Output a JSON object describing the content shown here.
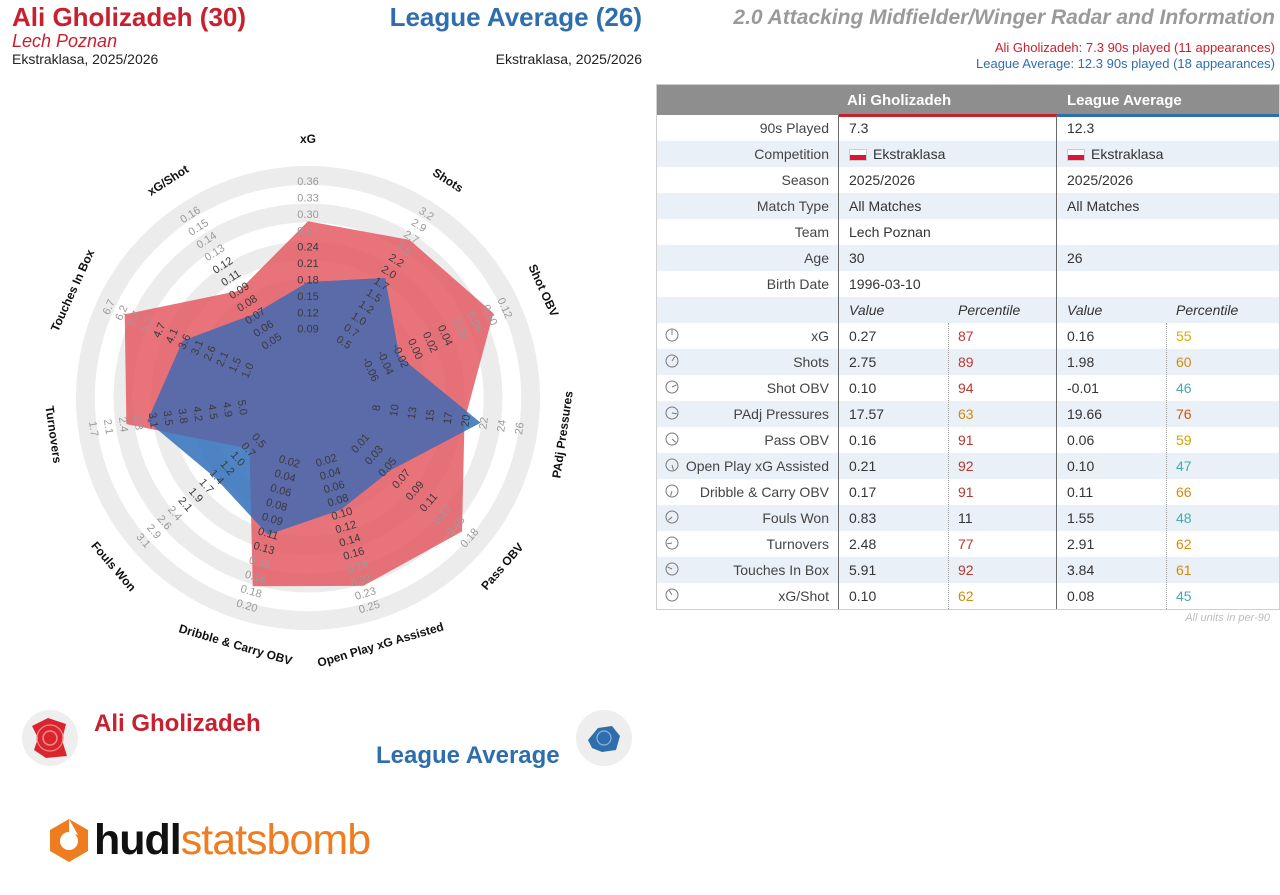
{
  "header": {
    "player_name": "Ali Gholizadeh (30)",
    "player_team": "Lech Poznan",
    "player_competition": "Ekstraklasa, 2025/2026",
    "comparison_name": "League Average (26)",
    "comparison_competition": "Ekstraklasa, 2025/2026",
    "title": "2.0 Attacking Midfielder/Winger Radar and Information",
    "subtitle_player": "Ali Gholizadeh: 7.3 90s played (11 appearances)",
    "subtitle_comparison": "League Average: 12.3 90s played (18 appearances)"
  },
  "colors": {
    "player": "#c8202f",
    "comparison": "#2f6ead",
    "player_fill": "#e55a64",
    "comparison_fill": "#3c78be",
    "overlap": "#5b6aa8",
    "brand_orange": "#ee7d22"
  },
  "chart_data": {
    "type": "radar",
    "series": [
      {
        "name": "Ali Gholizadeh",
        "values": [
          0.27,
          2.75,
          0.1,
          17.57,
          0.16,
          0.21,
          0.17,
          0.83,
          2.48,
          5.91,
          0.1
        ]
      },
      {
        "name": "League Average",
        "values": [
          0.16,
          1.98,
          -0.01,
          19.66,
          0.06,
          0.1,
          0.11,
          1.55,
          2.91,
          3.84,
          0.08
        ]
      }
    ],
    "axes": [
      {
        "label": "xG",
        "min": 0.03,
        "max": 0.37,
        "ticks": [
          "0.09",
          "0.12",
          "0.15",
          "0.18",
          "0.21",
          "0.24",
          "0.27",
          "0.30",
          "0.33",
          "0.36"
        ],
        "reversed": false
      },
      {
        "label": "Shots",
        "min": 0.3,
        "max": 3.5,
        "ticks": [
          "0.5",
          "0.7",
          "1.0",
          "1.2",
          "1.5",
          "1.7",
          "2.0",
          "2.2",
          "2.5",
          "2.7",
          "2.9",
          "3.2"
        ],
        "reversed": false
      },
      {
        "label": "Shot OBV",
        "min": -0.07,
        "max": 0.13,
        "ticks": [
          "-0.06",
          "-0.04",
          "-0.02",
          "0.00",
          "0.02",
          "0.04",
          "0.06",
          "0.08",
          "0.10",
          "0.12"
        ],
        "reversed": false
      },
      {
        "label": "PAdj Pressures",
        "min": 3,
        "max": 27,
        "ticks": [
          "8",
          "10",
          "13",
          "15",
          "17",
          "20",
          "22",
          "24",
          "26"
        ],
        "reversed": false
      },
      {
        "label": "Pass OBV",
        "min": -0.01,
        "max": 0.19,
        "ticks": [
          "0.01",
          "0.03",
          "0.05",
          "0.07",
          "0.09",
          "0.11",
          "0.13",
          "0.15",
          "0.18"
        ],
        "reversed": false
      },
      {
        "label": "Open Play xG Assisted",
        "min": 0.0,
        "max": 0.26,
        "ticks": [
          "0.02",
          "0.04",
          "0.06",
          "0.08",
          "0.10",
          "0.12",
          "0.14",
          "0.16",
          "0.18",
          "0.21",
          "0.23",
          "0.25"
        ],
        "reversed": false
      },
      {
        "label": "Dribble & Carry OBV",
        "min": 0.0,
        "max": 0.21,
        "ticks": [
          "0.02",
          "0.04",
          "0.06",
          "0.08",
          "0.09",
          "0.11",
          "0.13",
          "0.15",
          "0.16",
          "0.18",
          "0.20"
        ],
        "reversed": false
      },
      {
        "label": "Fouls Won",
        "min": 0.3,
        "max": 3.3,
        "ticks": [
          "0.5",
          "0.7",
          "1.0",
          "1.2",
          "1.4",
          "1.7",
          "1.9",
          "2.1",
          "2.4",
          "2.6",
          "2.9",
          "3.1"
        ],
        "reversed": false
      },
      {
        "label": "Turnovers",
        "min": 1.5,
        "max": 5.3,
        "ticks": [
          "5.0",
          "4.9",
          "4.5",
          "4.2",
          "3.8",
          "3.5",
          "3.1",
          "2.8",
          "2.4",
          "2.1",
          "1.7"
        ],
        "reversed": true
      },
      {
        "label": "Touches In Box",
        "min": 0.8,
        "max": 6.9,
        "ticks": [
          "1.0",
          "1.5",
          "2.1",
          "2.6",
          "3.1",
          "3.6",
          "4.1",
          "4.7",
          "5.2",
          "5.7",
          "6.2",
          "6.7"
        ],
        "reversed": false
      },
      {
        "label": "xG/Shot",
        "min": 0.04,
        "max": 0.175,
        "ticks": [
          "0.05",
          "0.06",
          "0.07",
          "0.08",
          "0.09",
          "0.11",
          "0.12",
          "0.13",
          "0.14",
          "0.15",
          "0.16"
        ],
        "reversed": false
      }
    ]
  },
  "legend": {
    "player_label": "Ali Gholizadeh",
    "comparison_label": "League Average"
  },
  "logo": {
    "part_a": "hudl",
    "part_b": "statsbomb"
  },
  "table": {
    "header_player": "Ali Gholizadeh",
    "header_comparison": "League Average",
    "info_rows": [
      {
        "label": "90s Played",
        "player": "7.3",
        "comparison": "12.3"
      },
      {
        "label": "Competition",
        "player": "Ekstraklasa",
        "comparison": "Ekstraklasa"
      },
      {
        "label": "Season",
        "player": "2025/2026",
        "comparison": "2025/2026"
      },
      {
        "label": "Match Type",
        "player": "All Matches",
        "comparison": "All Matches"
      },
      {
        "label": "Team",
        "player": "Lech Poznan",
        "comparison": ""
      },
      {
        "label": "Age",
        "player": "30",
        "comparison": "26"
      },
      {
        "label": "Birth Date",
        "player": "1996-03-10",
        "comparison": ""
      }
    ],
    "col_value": "Value",
    "col_percentile": "Percentile",
    "metric_rows": [
      {
        "label": "xG",
        "p_val": "0.27",
        "p_pct": "87",
        "p_color": "#c0392b",
        "c_val": "0.16",
        "c_pct": "55",
        "c_color": "#d4b000"
      },
      {
        "label": "Shots",
        "p_val": "2.75",
        "p_pct": "89",
        "p_color": "#c0392b",
        "c_val": "1.98",
        "c_pct": "60",
        "c_color": "#d68910"
      },
      {
        "label": "Shot OBV",
        "p_val": "0.10",
        "p_pct": "94",
        "p_color": "#b03a2e",
        "c_val": "-0.01",
        "c_pct": "46",
        "c_color": "#48a9a6"
      },
      {
        "label": "PAdj Pressures",
        "p_val": "17.57",
        "p_pct": "63",
        "p_color": "#d68910",
        "c_val": "19.66",
        "c_pct": "76",
        "c_color": "#d35400"
      },
      {
        "label": "Pass OBV",
        "p_val": "0.16",
        "p_pct": "91",
        "p_color": "#b03a2e",
        "c_val": "0.06",
        "c_pct": "59",
        "c_color": "#d4a000"
      },
      {
        "label": "Open Play xG Assisted",
        "p_val": "0.21",
        "p_pct": "92",
        "p_color": "#b03a2e",
        "c_val": "0.10",
        "c_pct": "47",
        "c_color": "#48a9a6"
      },
      {
        "label": "Dribble & Carry OBV",
        "p_val": "0.17",
        "p_pct": "91",
        "p_color": "#b03a2e",
        "c_val": "0.11",
        "c_pct": "66",
        "c_color": "#d68910"
      },
      {
        "label": "Fouls Won",
        "p_val": "0.83",
        "p_pct": "11",
        "p_color": "#333333",
        "c_val": "1.55",
        "c_pct": "48",
        "c_color": "#48a9a6"
      },
      {
        "label": "Turnovers",
        "p_val": "2.48",
        "p_pct": "77",
        "p_color": "#c0392b",
        "c_val": "2.91",
        "c_pct": "62",
        "c_color": "#d68910"
      },
      {
        "label": "Touches In Box",
        "p_val": "5.91",
        "p_pct": "92",
        "p_color": "#b03a2e",
        "c_val": "3.84",
        "c_pct": "61",
        "c_color": "#d68910"
      },
      {
        "label": "xG/Shot",
        "p_val": "0.10",
        "p_pct": "62",
        "p_color": "#d68910",
        "c_val": "0.08",
        "c_pct": "45",
        "c_color": "#48a9a6"
      }
    ],
    "units_note": "All units in per-90"
  }
}
